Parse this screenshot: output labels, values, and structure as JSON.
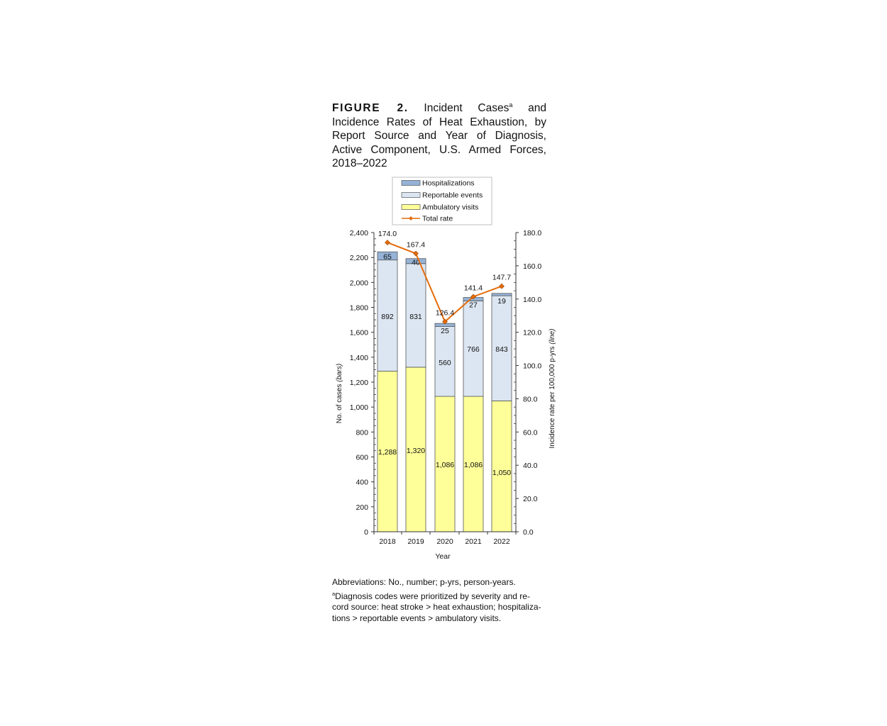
{
  "figure": {
    "label": "FIGURE 2.",
    "title_part1": "Incident Cases",
    "title_sup": "a",
    "title_part2": " and Incidence Rates of Heat Exhaustion, by Report Source and Year of Diagnosis, Active Component, U.S. Armed Forces, 2018–2022"
  },
  "chart_data": {
    "type": "bar",
    "stacked": true,
    "categories": [
      "2018",
      "2019",
      "2020",
      "2021",
      "2022"
    ],
    "xlabel": "Year",
    "ylabel": "No. of cases",
    "ylabel_suffix": "(bars)",
    "y2label": "Incidence rate per 100,000 p-yrs",
    "y2label_suffix": "(line)",
    "ylim": [
      0,
      2400
    ],
    "yticks": [
      0,
      200,
      400,
      600,
      800,
      1000,
      1200,
      1400,
      1600,
      1800,
      2000,
      2200,
      2400
    ],
    "ytick_labels": [
      "0",
      "200",
      "400",
      "600",
      "800",
      "1,000",
      "1,200",
      "1,400",
      "1,600",
      "1,800",
      "2,000",
      "2,200",
      "2,400"
    ],
    "y2lim": [
      0,
      180
    ],
    "y2ticks": [
      0,
      20,
      40,
      60,
      80,
      100,
      120,
      140,
      160,
      180
    ],
    "y2tick_labels": [
      "0.0",
      "20.0",
      "40.0",
      "60.0",
      "80.0",
      "100.0",
      "120.0",
      "140.0",
      "160.0",
      "180.0"
    ],
    "series": [
      {
        "name": "Ambulatory visits",
        "values": [
          1288,
          1320,
          1086,
          1086,
          1050
        ],
        "labels": [
          "1,288",
          "1,320",
          "1,086",
          "1,086",
          "1,050"
        ],
        "color": "#FFFF99"
      },
      {
        "name": "Reportable events",
        "values": [
          892,
          831,
          560,
          766,
          843
        ],
        "labels": [
          "892",
          "831",
          "560",
          "766",
          "843"
        ],
        "color": "#DCE6F2"
      },
      {
        "name": "Hospitalizations",
        "values": [
          65,
          40,
          25,
          27,
          19
        ],
        "labels": [
          "65",
          "40",
          "25",
          "27",
          "19"
        ],
        "color": "#95B3D7"
      }
    ],
    "line": {
      "name": "Total rate",
      "values": [
        174.0,
        167.4,
        126.4,
        141.4,
        147.7
      ],
      "labels": [
        "174.0",
        "167.4",
        "126.4",
        "141.4",
        "147.7"
      ],
      "color": "#E46C0A"
    },
    "legend": {
      "position": "top-center",
      "entries": [
        "Hospitalizations",
        "Reportable events",
        "Ambulatory visits",
        "Total rate"
      ]
    },
    "grid": false
  },
  "footnotes": {
    "abbreviations": "Abbreviations: No., number; p-yrs, person-years.",
    "note_marker": "a",
    "note_line1": "Diagnosis codes were prioritized by severity and re-",
    "note_line2": "cord source: heat stroke > heat exhaustion; hospitaliza-",
    "note_line3": "tions > reportable events > ambulatory visits."
  }
}
